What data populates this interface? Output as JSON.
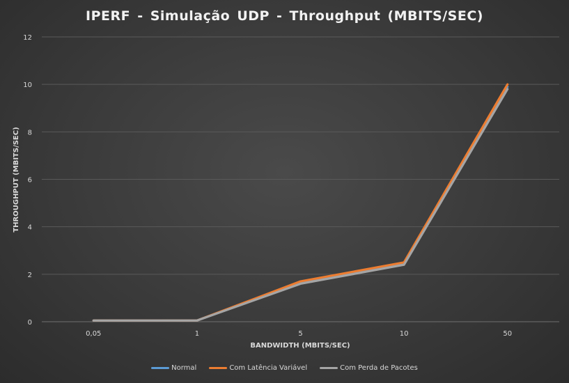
{
  "chart_data": {
    "type": "line",
    "title": "IPERF - Simulação  UDP - Throughput  (MBITS/SEC)",
    "xlabel": "BANDWIDTH (MBITS/SEC)",
    "ylabel": "THROUGHPUT (MBITS/SEC)",
    "categories": [
      "0,05",
      "1",
      "5",
      "10",
      "50"
    ],
    "ylim": [
      0,
      12
    ],
    "yticks": [
      "0",
      "2",
      "4",
      "6",
      "8",
      "10",
      "12"
    ],
    "grid": true,
    "legend_position": "bottom",
    "series": [
      {
        "name": "Normal",
        "color": "#5b9bd5",
        "values": [
          0.05,
          0.05,
          1.65,
          2.45,
          9.9
        ]
      },
      {
        "name": "Com Latência Variável",
        "color": "#ed7d31",
        "values": [
          0.05,
          0.05,
          1.7,
          2.5,
          10.0
        ]
      },
      {
        "name": "Com Perda de Pacotes",
        "color": "#a5a5a5",
        "values": [
          0.05,
          0.05,
          1.6,
          2.4,
          9.8
        ]
      }
    ]
  }
}
